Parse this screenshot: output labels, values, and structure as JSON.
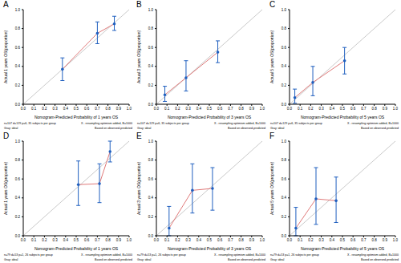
{
  "chart_data": [
    {
      "type": "line",
      "title": "A",
      "x_label": "Nomogram-Predicted Probability of 1 years OS",
      "y_label": "Actual 1 years OS(proportion)",
      "x": [
        0.37,
        0.7,
        0.86
      ],
      "values": [
        0.37,
        0.75,
        0.85
      ],
      "error_low": [
        0.25,
        0.64,
        0.78
      ],
      "error_high": [
        0.49,
        0.87,
        0.93
      ],
      "color": "#1f5fbf",
      "marker": "circle",
      "line_style": "solid",
      "xlim": [
        0,
        1
      ],
      "ylim": [
        0,
        1
      ],
      "xticks": [
        {
          "value": 0,
          "label": "0.0"
        },
        {
          "value": 0.1,
          "label": "0.1"
        },
        {
          "value": 0.2,
          "label": "0.2"
        },
        {
          "value": 0.3,
          "label": "0.3"
        },
        {
          "value": 0.4,
          "label": "0.4"
        },
        {
          "value": 0.5,
          "label": "0.5"
        },
        {
          "value": 0.6,
          "label": "0.6"
        },
        {
          "value": 0.7,
          "label": "0.7"
        },
        {
          "value": 0.8,
          "label": "0.8"
        },
        {
          "value": 0.9,
          "label": "0.9"
        },
        {
          "value": 1,
          "label": "1.0"
        }
      ],
      "yticks": [
        {
          "value": 0,
          "label": "0.0"
        },
        {
          "value": 0.2,
          "label": "0.2"
        },
        {
          "value": 0.4,
          "label": "0.4"
        },
        {
          "value": 0.6,
          "label": "0.6"
        },
        {
          "value": 0.8,
          "label": "0.8"
        },
        {
          "value": 1,
          "label": "1.0"
        }
      ],
      "annotations": [
        "n=107 d=129 p=6, 35 subjects per group",
        "Gray: ideal",
        "X - resampling optimism added, B=1000",
        "Based on observed-predicted"
      ]
    },
    {
      "type": "line",
      "title": "B",
      "x_label": "Nomogram-Predicted Probability of 3 years OS",
      "y_label": "Actual 3 years OS(proportion)",
      "x": [
        0.08,
        0.28,
        0.58
      ],
      "values": [
        0.1,
        0.28,
        0.55
      ],
      "error_low": [
        0.03,
        0.14,
        0.44
      ],
      "error_high": [
        0.19,
        0.46,
        0.67
      ],
      "color": "#1f5fbf",
      "marker": "circle",
      "line_style": "solid",
      "xlim": [
        0,
        1
      ],
      "ylim": [
        0,
        1
      ],
      "xticks": [
        {
          "value": 0,
          "label": "0.0"
        },
        {
          "value": 0.1,
          "label": "0.1"
        },
        {
          "value": 0.2,
          "label": "0.2"
        },
        {
          "value": 0.3,
          "label": "0.3"
        },
        {
          "value": 0.4,
          "label": "0.4"
        },
        {
          "value": 0.5,
          "label": "0.5"
        },
        {
          "value": 0.6,
          "label": "0.6"
        },
        {
          "value": 0.7,
          "label": "0.7"
        },
        {
          "value": 0.8,
          "label": "0.8"
        },
        {
          "value": 0.9,
          "label": "0.9"
        },
        {
          "value": 1,
          "label": "1.0"
        }
      ],
      "yticks": [
        {
          "value": 0,
          "label": "0.0"
        },
        {
          "value": 0.2,
          "label": "0.2"
        },
        {
          "value": 0.4,
          "label": "0.4"
        },
        {
          "value": 0.6,
          "label": "0.6"
        },
        {
          "value": 0.8,
          "label": "0.8"
        },
        {
          "value": 1,
          "label": "1.0"
        }
      ],
      "annotations": [
        "n=107 d=129 p=6, 35 subjects per group",
        "Gray: ideal",
        "X - resampling optimism added, B=1000",
        "Based on observed-predicted"
      ]
    },
    {
      "type": "line",
      "title": "C",
      "x_label": "Nomogram-Predicted Probability of 5 years OS",
      "y_label": "Actual 5 years OS(proportion)",
      "x": [
        0.05,
        0.22,
        0.52
      ],
      "values": [
        0.07,
        0.23,
        0.46
      ],
      "error_low": [
        0.01,
        0.09,
        0.32
      ],
      "error_high": [
        0.16,
        0.4,
        0.6
      ],
      "color": "#1f5fbf",
      "marker": "circle",
      "line_style": "solid",
      "xlim": [
        0,
        1
      ],
      "ylim": [
        0,
        1
      ],
      "xticks": [
        {
          "value": 0,
          "label": "0.0"
        },
        {
          "value": 0.1,
          "label": "0.1"
        },
        {
          "value": 0.2,
          "label": "0.2"
        },
        {
          "value": 0.3,
          "label": "0.3"
        },
        {
          "value": 0.4,
          "label": "0.4"
        },
        {
          "value": 0.5,
          "label": "0.5"
        },
        {
          "value": 0.6,
          "label": "0.6"
        },
        {
          "value": 0.7,
          "label": "0.7"
        },
        {
          "value": 0.8,
          "label": "0.8"
        },
        {
          "value": 0.9,
          "label": "0.9"
        },
        {
          "value": 1,
          "label": "1.0"
        }
      ],
      "yticks": [
        {
          "value": 0,
          "label": "0.0"
        },
        {
          "value": 0.2,
          "label": "0.2"
        },
        {
          "value": 0.4,
          "label": "0.4"
        },
        {
          "value": 0.6,
          "label": "0.6"
        },
        {
          "value": 0.8,
          "label": "0.8"
        },
        {
          "value": 1,
          "label": "1.0"
        }
      ],
      "annotations": [
        "n=107 d=129 p=6, 35 subjects per group",
        "Gray: ideal",
        "X - resampling optimism added, B=1000",
        "Based on observed-predicted"
      ]
    },
    {
      "type": "line",
      "title": "D",
      "x_label": "Nomogram-Predicted Probability of 1 years OS",
      "y_label": "Actual 1 years OS(proportion)",
      "x": [
        0.52,
        0.72,
        0.82
      ],
      "values": [
        0.54,
        0.55,
        0.89
      ],
      "error_low": [
        0.32,
        0.35,
        0.78
      ],
      "error_high": [
        0.79,
        0.76,
        1.0
      ],
      "color": "#1f5fbf",
      "marker": "circle",
      "line_style": "solid",
      "xlim": [
        0,
        1
      ],
      "ylim": [
        0,
        1
      ],
      "xticks": [
        {
          "value": 0,
          "label": "0.0"
        },
        {
          "value": 0.1,
          "label": "0.1"
        },
        {
          "value": 0.2,
          "label": "0.2"
        },
        {
          "value": 0.3,
          "label": "0.3"
        },
        {
          "value": 0.4,
          "label": "0.4"
        },
        {
          "value": 0.5,
          "label": "0.5"
        },
        {
          "value": 0.6,
          "label": "0.6"
        },
        {
          "value": 0.7,
          "label": "0.7"
        },
        {
          "value": 0.8,
          "label": "0.8"
        },
        {
          "value": 0.9,
          "label": "0.9"
        },
        {
          "value": 1,
          "label": "1.0"
        }
      ],
      "yticks": [
        {
          "value": 0,
          "label": "0.0"
        },
        {
          "value": 0.2,
          "label": "0.2"
        },
        {
          "value": 0.4,
          "label": "0.4"
        },
        {
          "value": 0.6,
          "label": "0.6"
        },
        {
          "value": 0.8,
          "label": "0.8"
        },
        {
          "value": 1,
          "label": "1.0"
        }
      ],
      "annotations": [
        "n=79 d=53 p=1, 26 subjects per group",
        "Gray: ideal",
        "X - resampling optimism added, B=1000",
        "Based on observed-predicted"
      ]
    },
    {
      "type": "line",
      "title": "E",
      "x_label": "Nomogram-Predicted Probability of 3 years OS",
      "y_label": "Actual 3 years OS(proportion)",
      "x": [
        0.12,
        0.34,
        0.53
      ],
      "values": [
        0.08,
        0.48,
        0.5
      ],
      "error_low": [
        0.0,
        0.24,
        0.27
      ],
      "error_high": [
        0.31,
        0.76,
        0.72
      ],
      "color": "#1f5fbf",
      "marker": "circle",
      "line_style": "solid",
      "xlim": [
        0,
        1
      ],
      "ylim": [
        0,
        1
      ],
      "xticks": [
        {
          "value": 0,
          "label": "0.0"
        },
        {
          "value": 0.1,
          "label": "0.1"
        },
        {
          "value": 0.2,
          "label": "0.2"
        },
        {
          "value": 0.3,
          "label": "0.3"
        },
        {
          "value": 0.4,
          "label": "0.4"
        },
        {
          "value": 0.5,
          "label": "0.5"
        },
        {
          "value": 0.6,
          "label": "0.6"
        },
        {
          "value": 0.7,
          "label": "0.7"
        },
        {
          "value": 0.8,
          "label": "0.8"
        },
        {
          "value": 0.9,
          "label": "0.9"
        },
        {
          "value": 1,
          "label": "1.0"
        }
      ],
      "yticks": [
        {
          "value": 0,
          "label": "0.0"
        },
        {
          "value": 0.2,
          "label": "0.2"
        },
        {
          "value": 0.4,
          "label": "0.4"
        },
        {
          "value": 0.6,
          "label": "0.6"
        },
        {
          "value": 0.8,
          "label": "0.8"
        },
        {
          "value": 1,
          "label": "1.0"
        }
      ],
      "annotations": [
        "n=79 d=53 p=1, 26 subjects per group",
        "Gray: ideal",
        "X - resampling optimism added, B=1000",
        "Based on observed-predicted"
      ]
    },
    {
      "type": "line",
      "title": "F",
      "x_label": "Nomogram-Predicted Probability of 5 years OS",
      "y_label": "Actual 5 years OS(proportion)",
      "x": [
        0.06,
        0.25,
        0.44
      ],
      "values": [
        0.08,
        0.39,
        0.37
      ],
      "error_low": [
        0.0,
        0.12,
        0.14
      ],
      "error_high": [
        0.3,
        0.72,
        0.62
      ],
      "color": "#1f5fbf",
      "marker": "circle",
      "line_style": "solid",
      "xlim": [
        0,
        1
      ],
      "ylim": [
        0,
        1
      ],
      "xticks": [
        {
          "value": 0,
          "label": "0.0"
        },
        {
          "value": 0.1,
          "label": "0.1"
        },
        {
          "value": 0.2,
          "label": "0.2"
        },
        {
          "value": 0.3,
          "label": "0.3"
        },
        {
          "value": 0.4,
          "label": "0.4"
        },
        {
          "value": 0.5,
          "label": "0.5"
        },
        {
          "value": 0.6,
          "label": "0.6"
        },
        {
          "value": 0.7,
          "label": "0.7"
        },
        {
          "value": 0.8,
          "label": "0.8"
        },
        {
          "value": 0.9,
          "label": "0.9"
        },
        {
          "value": 1,
          "label": "1.0"
        }
      ],
      "yticks": [
        {
          "value": 0,
          "label": "0.0"
        },
        {
          "value": 0.2,
          "label": "0.2"
        },
        {
          "value": 0.4,
          "label": "0.4"
        },
        {
          "value": 0.6,
          "label": "0.6"
        },
        {
          "value": 0.8,
          "label": "0.8"
        },
        {
          "value": 1,
          "label": "1.0"
        }
      ],
      "annotations": [
        "n=79 d=53 p=1, 26 subjects per group",
        "Gray: ideal",
        "X - resampling optimism added, B=1000",
        "Based on observed-predicted"
      ]
    }
  ]
}
